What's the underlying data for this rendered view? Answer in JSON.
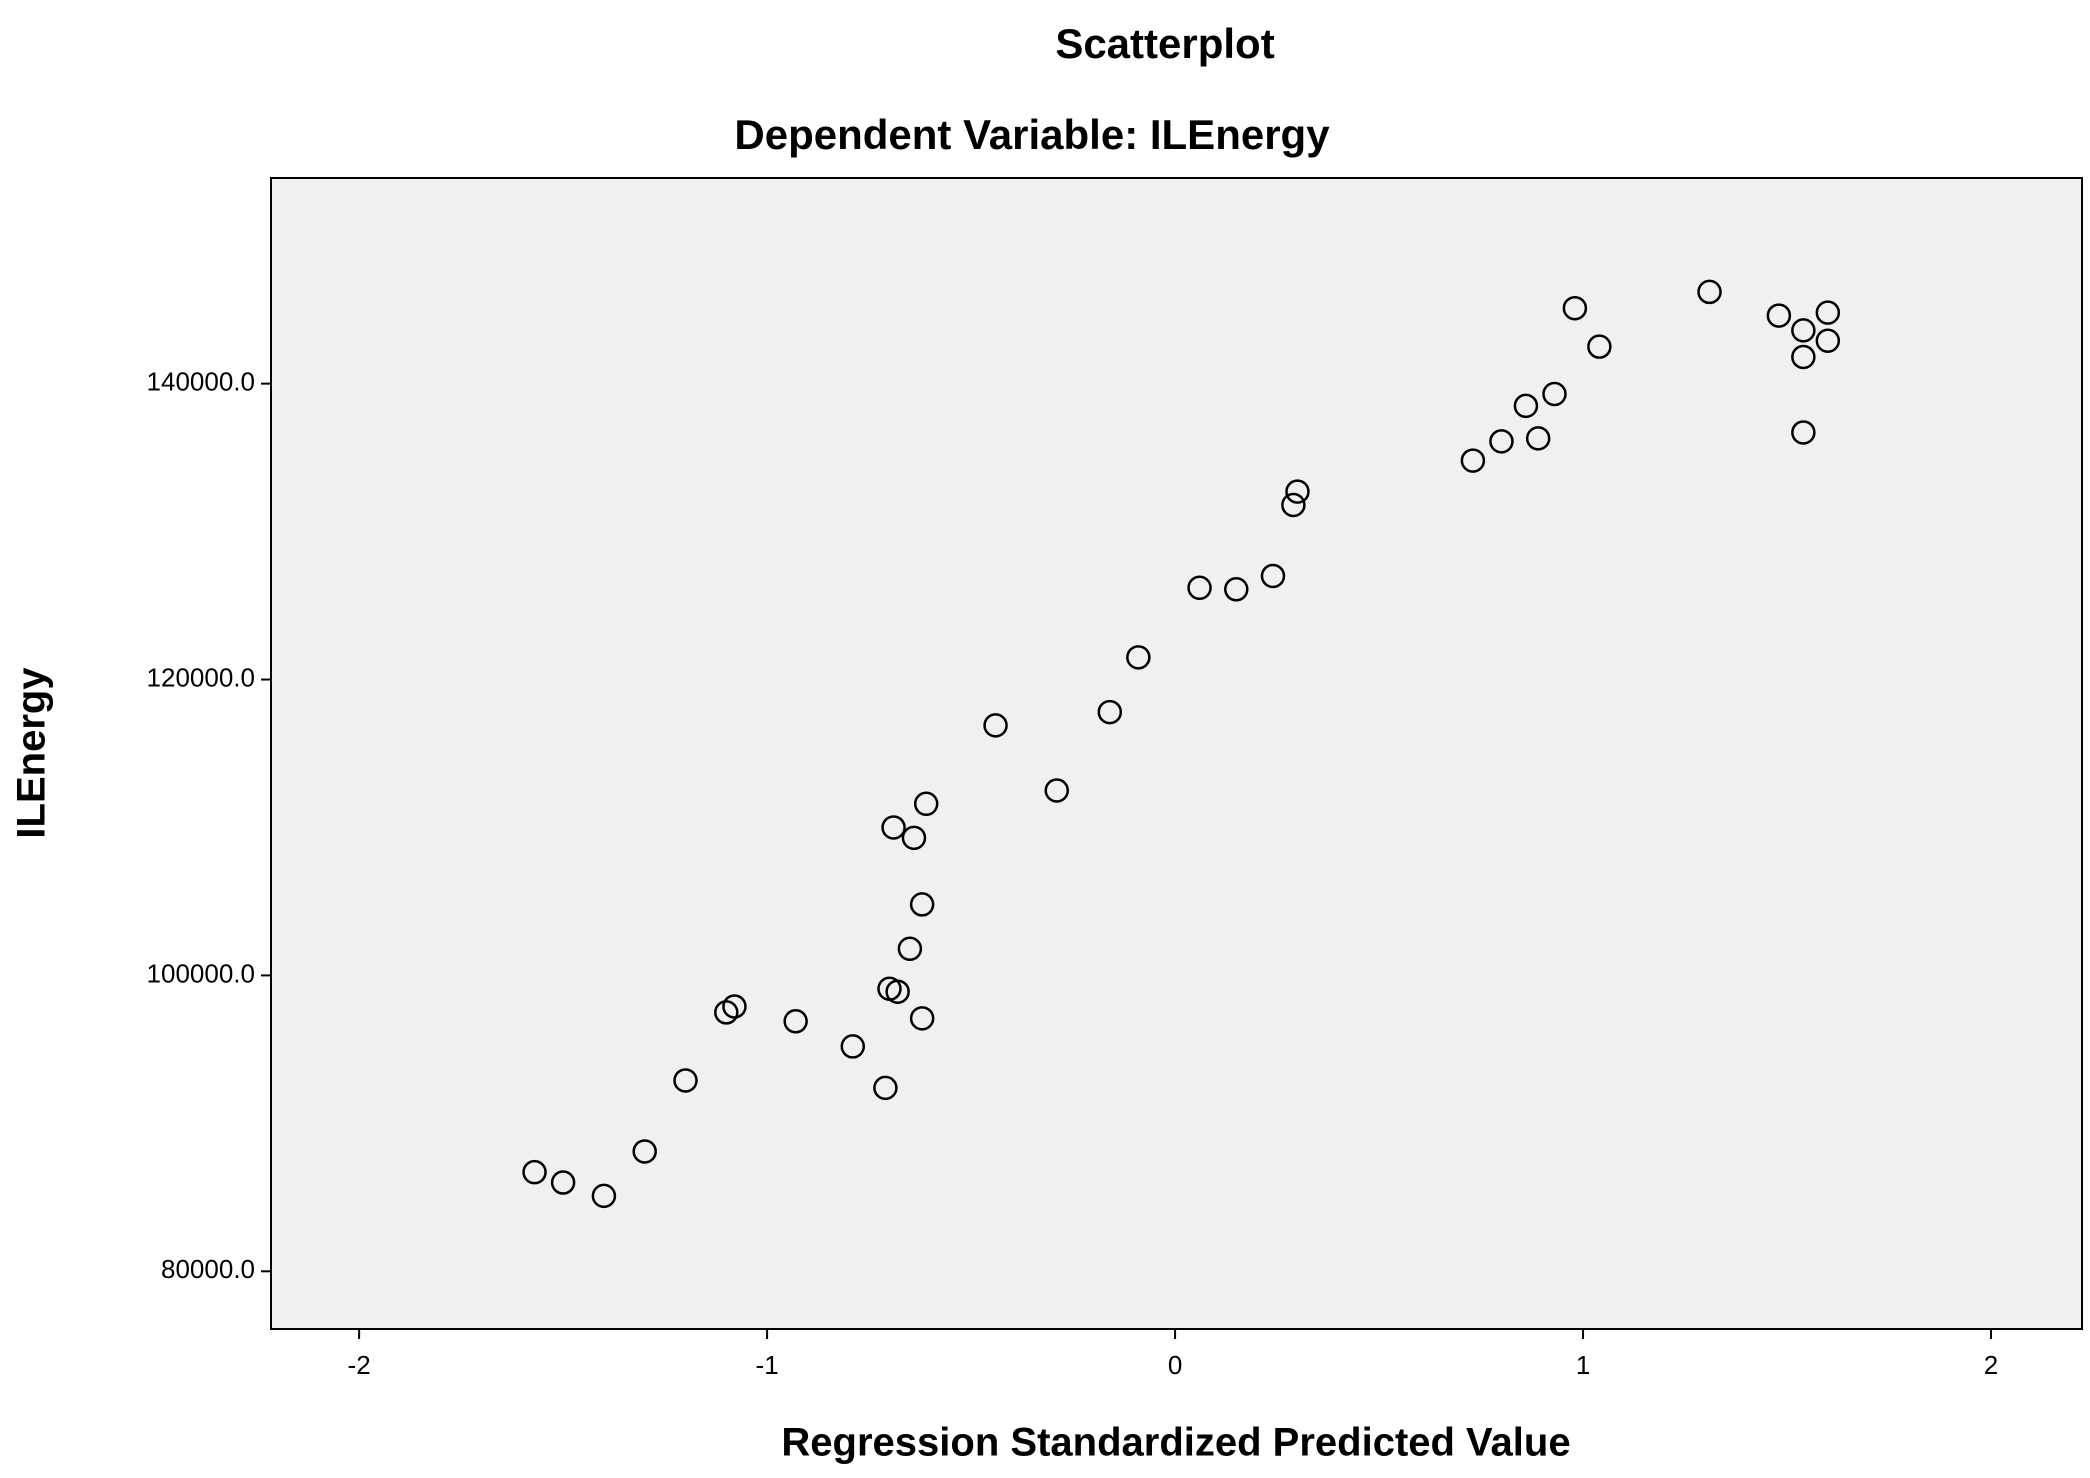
{
  "chart_data": {
    "type": "scatter",
    "title": "Scatterplot",
    "subtitle": "Dependent Variable: ILEnergy",
    "x_label": "Regression Standardized Predicted Value",
    "y_label": "ILEnergy",
    "x": [
      1.31,
      0.98,
      1.48,
      1.6,
      1.54,
      1.6,
      1.04,
      1.54,
      0.93,
      0.86,
      0.89,
      0.8,
      1.54,
      0.73,
      0.3,
      0.29,
      0.24,
      0.06,
      0.15,
      -0.09,
      -0.16,
      -0.44,
      -0.29,
      -0.61,
      -0.69,
      -0.64,
      -0.62,
      -0.65,
      -0.7,
      -0.68,
      -1.08,
      -1.1,
      -0.93,
      -0.62,
      -0.79,
      -1.2,
      -0.71,
      -1.3,
      -1.57,
      -1.5,
      -1.4
    ],
    "values": [
      146200,
      145100,
      144600,
      144800,
      143600,
      142900,
      142500,
      141800,
      139300,
      138500,
      136300,
      136100,
      136700,
      134800,
      132700,
      131800,
      127000,
      126200,
      126100,
      121500,
      117800,
      116900,
      112500,
      111600,
      110000,
      109300,
      104800,
      101800,
      99100,
      98900,
      97900,
      97500,
      96900,
      97100,
      95200,
      92900,
      92400,
      88100,
      86700,
      86000,
      85100
    ],
    "color": "#000000",
    "xlim": [
      -2.216,
      2.223
    ],
    "ylim": [
      76100,
      153900
    ],
    "xticks": [
      -2,
      -1,
      0,
      1,
      2
    ],
    "yticks": [
      {
        "value": 80000,
        "label": "80000.0"
      },
      {
        "value": 100000,
        "label": "100000.0"
      },
      {
        "value": 120000,
        "label": "120000.0"
      },
      {
        "value": 140000,
        "label": "140000.0"
      }
    ],
    "grid": false
  }
}
